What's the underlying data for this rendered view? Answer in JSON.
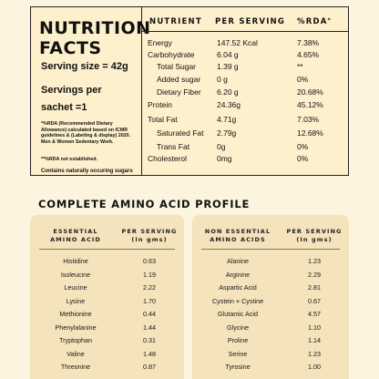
{
  "nutrition": {
    "title_line1": "NUTRITION",
    "title_line2": "FACTS",
    "serving_size": "Serving size = 42g",
    "servings_per_line1": "Servings per",
    "servings_per_line2": "sachet =1",
    "rda_note": "*%RDA (Recommended Dietary Allowance) calculated based on ICMR guidelines & (Labeling & display) 2020. Men & Women Sedentary Work.",
    "rda_note2": "**%RDA not established.",
    "contains_note": "Contains naturally occuring sugars",
    "headers": {
      "nutrient": "NUTRIENT",
      "per_serving": "PER SERVING",
      "rda": "%RDA",
      "rda_mark": "*"
    },
    "rows": [
      {
        "nutrient": "Energy",
        "serving": "147.52 Kcal",
        "rda": "7.38%"
      },
      {
        "nutrient": "Carbohydrate",
        "serving": "6.04 g",
        "rda": "4.65%"
      },
      {
        "nutrient": "Total Sugar",
        "serving": "1.39 g",
        "rda": "**"
      },
      {
        "nutrient": "Added sugar",
        "serving": "0 g",
        "rda": "0%"
      },
      {
        "nutrient": "Dietary Fiber",
        "serving": "6.20 g",
        "rda": "20.68%"
      },
      {
        "nutrient": "Protein",
        "serving": "24.36g",
        "rda": "45.12%"
      },
      {
        "nutrient": "Total Fat",
        "serving": "4.71g",
        "rda": "7.03%"
      },
      {
        "nutrient": "Saturated Fat",
        "serving": "2.79g",
        "rda": "12.68%"
      },
      {
        "nutrient": "Trans Fat",
        "serving": "0g",
        "rda": "0%"
      },
      {
        "nutrient": "Cholesterol",
        "serving": "0mg",
        "rda": "0%"
      }
    ]
  },
  "amino": {
    "title": "COMPLETE AMINO ACID PROFILE",
    "essential": {
      "header_acid_line1": "ESSENTIAL",
      "header_acid_line2": "AMINO ACID",
      "header_serving_line1": "PER SERVING",
      "header_serving_line2": "(In gms)",
      "rows": [
        {
          "acid": "Histidine",
          "value": "0.63"
        },
        {
          "acid": "Isoleucine",
          "value": "1.19"
        },
        {
          "acid": "Leucine",
          "value": "2.22"
        },
        {
          "acid": "Lysine",
          "value": "1.70"
        },
        {
          "acid": "Methionine",
          "value": "0.44"
        },
        {
          "acid": "Phenylalanine",
          "value": "1.44"
        },
        {
          "acid": "Tryptophan",
          "value": "0.31"
        },
        {
          "acid": "Valine",
          "value": "1.48"
        },
        {
          "acid": "Threonine",
          "value": "0.87"
        }
      ]
    },
    "non_essential": {
      "header_acid_line1": "NON ESSENTIAL",
      "header_acid_line2": "AMINO ACIDS",
      "header_serving_line1": "PER SERVING",
      "header_serving_line2": "(In gms)",
      "rows": [
        {
          "acid": "Alanine",
          "value": "1.23"
        },
        {
          "acid": "Arginine",
          "value": "2.29"
        },
        {
          "acid": "Aspartic Acid",
          "value": "2.81"
        },
        {
          "acid": "Cystein + Cystine",
          "value": "0.67"
        },
        {
          "acid": "Glutamic Acid",
          "value": "4.57"
        },
        {
          "acid": "Glycine",
          "value": "1.10"
        },
        {
          "acid": "Proline",
          "value": "1.14"
        },
        {
          "acid": "Serine",
          "value": "1.23"
        },
        {
          "acid": "Tyrosine",
          "value": "1.00"
        }
      ]
    }
  }
}
